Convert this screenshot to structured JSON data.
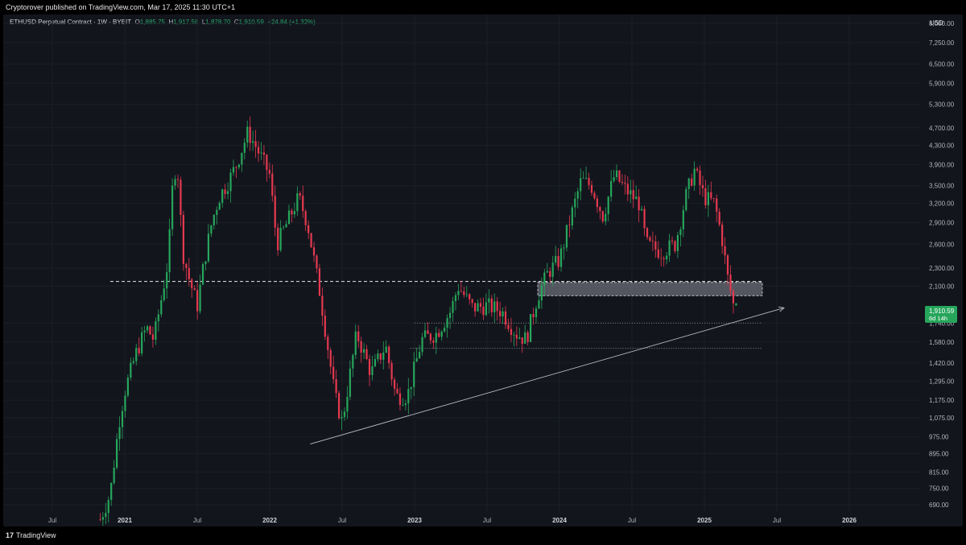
{
  "header": {
    "published": "Cryptorover published on TradingView.com, Mar 17, 2025 11:30 UTC+1"
  },
  "legend": {
    "symbol": "ETHUSD Perpetual Contract · 1W · BYBIT",
    "o_label": "O",
    "o_value": "1,885.75",
    "h_label": "H",
    "h_value": "1,917.58",
    "l_label": "L",
    "l_value": "1,878.70",
    "c_label": "C",
    "c_value": "1,910.59",
    "change": "+24.84 (+1.32%)"
  },
  "footer": {
    "brand": "TradingView",
    "brand_mark": "17"
  },
  "colors": {
    "up": "#26a65b",
    "down": "#e5394f",
    "background": "#13151d",
    "price_tag": "#26a65b",
    "grid": "#1b1e27",
    "axis_text": "#b2b5be"
  },
  "chart_data": {
    "type": "candlestick",
    "title": "ETHUSD Perpetual Contract · 1W · BYBIT",
    "currency": "USD",
    "y_scale": "log",
    "y_ticks": [
      "8,000.00",
      "7,250.00",
      "6,500.00",
      "5,900.00",
      "5,300.00",
      "4,700.00",
      "4,300.00",
      "3,900.00",
      "3,500.00",
      "3,200.00",
      "2,900.00",
      "2,600.00",
      "2,300.00",
      "2,100.00",
      "1,740.00",
      "1,580.00",
      "1,420.00",
      "1,295.00",
      "1,175.00",
      "1,075.00",
      "975.00",
      "895.00",
      "815.00",
      "750.00",
      "690.00"
    ],
    "x_ticks": [
      "Jul",
      "2021",
      "Jul",
      "2022",
      "Jul",
      "2023",
      "Jul",
      "2024",
      "Jul",
      "2025",
      "Jul",
      "2026"
    ],
    "x_ticks_bold": [
      false,
      true,
      false,
      true,
      false,
      true,
      false,
      true,
      false,
      true,
      false,
      true
    ],
    "last_price": "1,910.59",
    "countdown": "6d 14h",
    "approx_weekly_closes": [
      [
        2020.83,
        640
      ],
      [
        2020.9,
        730
      ],
      [
        2020.96,
        1050
      ],
      [
        2021.0,
        1230
      ],
      [
        2021.08,
        1500
      ],
      [
        2021.15,
        1700
      ],
      [
        2021.2,
        1600
      ],
      [
        2021.25,
        1950
      ],
      [
        2021.3,
        2400
      ],
      [
        2021.33,
        3500
      ],
      [
        2021.36,
        4000
      ],
      [
        2021.4,
        2500
      ],
      [
        2021.44,
        2200
      ],
      [
        2021.5,
        1900
      ],
      [
        2021.55,
        2400
      ],
      [
        2021.6,
        2900
      ],
      [
        2021.65,
        3300
      ],
      [
        2021.72,
        3600
      ],
      [
        2021.77,
        3900
      ],
      [
        2021.85,
        4600
      ],
      [
        2021.9,
        4300
      ],
      [
        2022.0,
        3700
      ],
      [
        2022.05,
        2600
      ],
      [
        2022.12,
        2900
      ],
      [
        2022.2,
        3300
      ],
      [
        2022.26,
        2900
      ],
      [
        2022.35,
        2000
      ],
      [
        2022.45,
        1200
      ],
      [
        2022.5,
        1050
      ],
      [
        2022.6,
        1650
      ],
      [
        2022.7,
        1350
      ],
      [
        2022.8,
        1550
      ],
      [
        2022.87,
        1200
      ],
      [
        2022.95,
        1200
      ],
      [
        2023.05,
        1600
      ],
      [
        2023.15,
        1650
      ],
      [
        2023.25,
        1850
      ],
      [
        2023.3,
        2100
      ],
      [
        2023.4,
        1880
      ],
      [
        2023.5,
        1900
      ],
      [
        2023.6,
        1850
      ],
      [
        2023.7,
        1650
      ],
      [
        2023.77,
        1600
      ],
      [
        2023.85,
        2000
      ],
      [
        2023.92,
        2250
      ],
      [
        2024.0,
        2400
      ],
      [
        2024.08,
        3000
      ],
      [
        2024.15,
        3600
      ],
      [
        2024.22,
        3500
      ],
      [
        2024.3,
        3000
      ],
      [
        2024.38,
        3700
      ],
      [
        2024.45,
        3450
      ],
      [
        2024.55,
        3200
      ],
      [
        2024.6,
        2600
      ],
      [
        2024.7,
        2500
      ],
      [
        2024.8,
        2600
      ],
      [
        2024.87,
        3300
      ],
      [
        2024.93,
        3800
      ],
      [
        2025.0,
        3300
      ],
      [
        2025.07,
        3200
      ],
      [
        2025.12,
        2700
      ],
      [
        2025.16,
        2200
      ],
      [
        2025.2,
        1910
      ]
    ],
    "annotations": [
      {
        "type": "hline-dashed",
        "price": 2150,
        "x_from": 2020.9,
        "x_to": 2025.4
      },
      {
        "type": "zone",
        "price_low": 2000,
        "price_high": 2140,
        "x_from": 2023.85,
        "x_to": 2025.4
      },
      {
        "type": "hline-dotted",
        "price": 1740,
        "x_from": 2023.0,
        "x_to": 2025.4
      },
      {
        "type": "hline-dotted",
        "price": 1530,
        "x_from": 2022.97,
        "x_to": 2025.4
      },
      {
        "type": "trendline-arrow",
        "from": [
          2022.28,
          940
        ],
        "to": [
          2025.55,
          1880
        ]
      }
    ]
  }
}
